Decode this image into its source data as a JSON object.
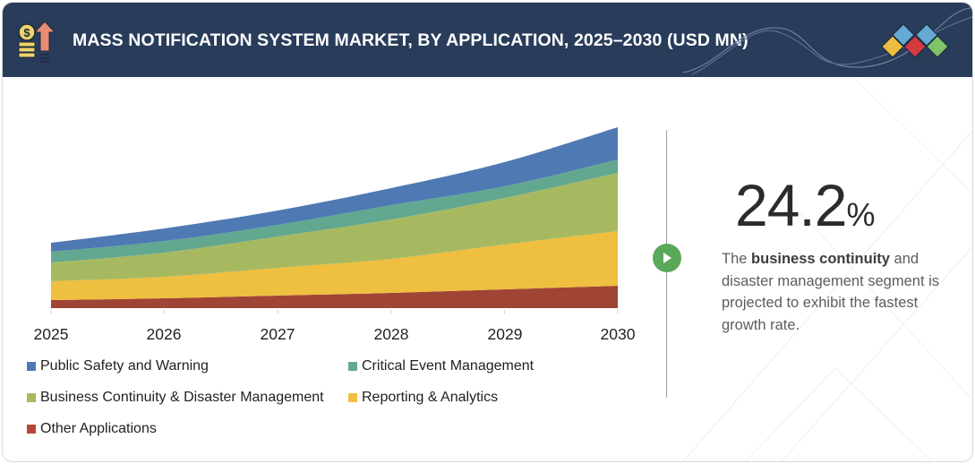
{
  "header": {
    "title": "MASS NOTIFICATION SYSTEM MARKET, BY APPLICATION, 2025–2030 (USD MN)",
    "icon": "coins-growth-arrow-icon",
    "logo": "four-diamond-logo"
  },
  "highlight": {
    "value": "24.2",
    "unit": "%",
    "text_before": "The ",
    "text_bold": "business continuity",
    "text_after": " and disaster management segment is projected to exhibit the fastest growth rate.",
    "play_icon": "play-icon",
    "play_color": "#5aa85a"
  },
  "chart_data": {
    "type": "area",
    "stacked": true,
    "title": "MASS NOTIFICATION SYSTEM MARKET, BY APPLICATION, 2025–2030 (USD MN)",
    "xlabel": "",
    "ylabel": "",
    "y_axis_shown": false,
    "units_note": "relative values estimated from pixel heights (no y-axis shown)",
    "grid": false,
    "legend_position": "bottom",
    "categories": [
      "2025",
      "2026",
      "2027",
      "2028",
      "2029",
      "2030"
    ],
    "series": [
      {
        "name": "Other Applications",
        "color": "#a04535",
        "values": [
          9,
          11,
          14,
          17,
          21,
          25
        ]
      },
      {
        "name": "Reporting & Analytics",
        "color": "#efbf40",
        "values": [
          21,
          24,
          31,
          38,
          50,
          61
        ]
      },
      {
        "name": "Business Continuity & Disaster Management",
        "color": "#a6b961",
        "values": [
          21,
          27,
          35,
          44,
          52,
          65
        ]
      },
      {
        "name": "Critical Event Management",
        "color": "#62a78f",
        "values": [
          12,
          13,
          13,
          16,
          13,
          15
        ]
      },
      {
        "name": "Public Safety and Warning",
        "color": "#4f79b3",
        "values": [
          10,
          14,
          16,
          19,
          27,
          36
        ]
      }
    ]
  },
  "legend": [
    {
      "label": "Public Safety and Warning",
      "color": "#4f79b3"
    },
    {
      "label": "Critical Event Management",
      "color": "#62a78f"
    },
    {
      "label": "Business Continuity & Disaster Management",
      "color": "#a6b961"
    },
    {
      "label": "Reporting & Analytics",
      "color": "#efbf40"
    },
    {
      "label": "Other Applications",
      "color": "#b5473a"
    }
  ]
}
